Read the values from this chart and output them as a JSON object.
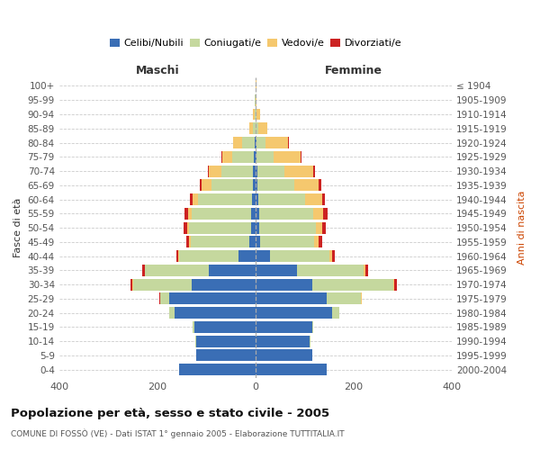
{
  "age_groups": [
    "0-4",
    "5-9",
    "10-14",
    "15-19",
    "20-24",
    "25-29",
    "30-34",
    "35-39",
    "40-44",
    "45-49",
    "50-54",
    "55-59",
    "60-64",
    "65-69",
    "70-74",
    "75-79",
    "80-84",
    "85-89",
    "90-94",
    "95-99",
    "100+"
  ],
  "birth_years": [
    "2000-2004",
    "1995-1999",
    "1990-1994",
    "1985-1989",
    "1980-1984",
    "1975-1979",
    "1970-1974",
    "1965-1969",
    "1960-1964",
    "1955-1959",
    "1950-1954",
    "1945-1949",
    "1940-1944",
    "1935-1939",
    "1930-1934",
    "1925-1929",
    "1920-1924",
    "1915-1919",
    "1910-1914",
    "1905-1909",
    "≤ 1904"
  ],
  "male_celibi": [
    155,
    120,
    120,
    125,
    165,
    175,
    130,
    95,
    35,
    12,
    10,
    10,
    8,
    5,
    5,
    3,
    2,
    0,
    0,
    0,
    0
  ],
  "male_coniugati": [
    0,
    0,
    2,
    3,
    10,
    20,
    120,
    130,
    120,
    120,
    125,
    120,
    110,
    85,
    65,
    45,
    25,
    5,
    2,
    1,
    0
  ],
  "male_vedovi": [
    0,
    0,
    0,
    0,
    0,
    0,
    1,
    1,
    2,
    3,
    5,
    8,
    10,
    20,
    25,
    20,
    18,
    8,
    3,
    1,
    0
  ],
  "male_divorziati": [
    0,
    0,
    0,
    0,
    0,
    1,
    4,
    5,
    5,
    6,
    7,
    7,
    5,
    3,
    2,
    1,
    0,
    0,
    0,
    0,
    0
  ],
  "female_celibi": [
    145,
    115,
    110,
    115,
    155,
    145,
    115,
    85,
    30,
    10,
    8,
    8,
    5,
    3,
    3,
    2,
    1,
    0,
    0,
    0,
    0
  ],
  "female_coniugati": [
    0,
    0,
    2,
    3,
    15,
    70,
    165,
    135,
    120,
    110,
    115,
    110,
    95,
    75,
    55,
    35,
    20,
    5,
    2,
    0,
    0
  ],
  "female_vedovi": [
    0,
    0,
    0,
    0,
    0,
    1,
    2,
    3,
    5,
    8,
    12,
    20,
    35,
    50,
    60,
    55,
    45,
    18,
    8,
    2,
    1
  ],
  "female_divorziati": [
    0,
    0,
    0,
    0,
    0,
    1,
    5,
    7,
    6,
    7,
    8,
    8,
    7,
    5,
    3,
    2,
    1,
    1,
    0,
    0,
    0
  ],
  "colors": {
    "celibi": "#3a6eb5",
    "coniugati": "#c5d89e",
    "vedovi": "#f5c86e",
    "divorziati": "#cc2222"
  },
  "title": "Popolazione per età, sesso e stato civile - 2005",
  "subtitle": "COMUNE DI FOSSÒ (VE) - Dati ISTAT 1° gennaio 2005 - Elaborazione TUTTITALIA.IT",
  "xlabel_left": "Maschi",
  "xlabel_right": "Femmine",
  "ylabel_left": "Fasce di età",
  "ylabel_right": "Anni di nascita",
  "xlim": 400
}
